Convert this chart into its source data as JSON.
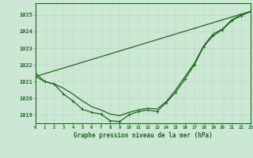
{
  "xlabel": "Graphe pression niveau de la mer (hPa)",
  "background_color": "#cce8d4",
  "grid_color": "#b8d9c0",
  "line_color": "#1a6b1a",
  "x_ticks": [
    0,
    1,
    2,
    3,
    4,
    5,
    6,
    7,
    8,
    9,
    10,
    11,
    12,
    13,
    14,
    15,
    16,
    17,
    18,
    19,
    20,
    21,
    22,
    23
  ],
  "ylim": [
    1018.5,
    1025.7
  ],
  "yticks": [
    1019,
    1020,
    1021,
    1022,
    1023,
    1024,
    1025
  ],
  "series_main": [
    1021.5,
    1021.0,
    1020.85,
    1020.25,
    1019.85,
    1019.35,
    1019.15,
    1019.05,
    1018.65,
    1018.6,
    1019.0,
    1019.2,
    1019.3,
    1019.2,
    1019.75,
    1020.35,
    1021.15,
    1022.0,
    1023.1,
    1023.75,
    1024.1,
    1024.65,
    1024.95,
    1025.2
  ],
  "series_linear": [
    1021.3,
    1021.47,
    1021.64,
    1021.81,
    1021.98,
    1022.15,
    1022.32,
    1022.49,
    1022.66,
    1022.83,
    1023.0,
    1023.17,
    1023.34,
    1023.51,
    1023.68,
    1023.85,
    1024.02,
    1024.19,
    1024.36,
    1024.53,
    1024.7,
    1024.87,
    1025.04,
    1025.2
  ],
  "series_third": [
    1021.3,
    1021.0,
    1020.85,
    1020.6,
    1020.25,
    1019.85,
    1019.5,
    1019.3,
    1019.05,
    1018.95,
    1019.15,
    1019.3,
    1019.4,
    1019.35,
    1019.8,
    1020.5,
    1021.3,
    1022.1,
    1023.15,
    1023.85,
    1024.15,
    1024.7,
    1025.0,
    1025.2
  ],
  "marker_size": 3.5,
  "line_width": 0.9
}
